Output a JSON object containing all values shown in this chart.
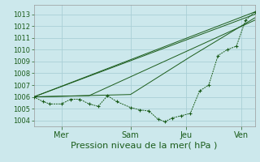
{
  "xlabel": "Pression niveau de la mer( hPa )",
  "background_color": "#cce8ec",
  "grid_color": "#aacfd6",
  "line_color": "#1a5c1a",
  "ylim": [
    1003.5,
    1013.8
  ],
  "yticks": [
    1004,
    1005,
    1006,
    1007,
    1008,
    1009,
    1010,
    1011,
    1012,
    1013
  ],
  "xlim": [
    0,
    96
  ],
  "xtick_positions": [
    12,
    42,
    66,
    90
  ],
  "xtick_labels": [
    "Mer",
    "Sam",
    "Jeu",
    "Ven"
  ],
  "series1_x": [
    0,
    4,
    7,
    12,
    16,
    20,
    24,
    28,
    32,
    36,
    42,
    46,
    50,
    54,
    57,
    60,
    64,
    68,
    72,
    76,
    80,
    84,
    88,
    92,
    96
  ],
  "series1_y": [
    1006.0,
    1005.6,
    1005.4,
    1005.4,
    1005.8,
    1005.8,
    1005.4,
    1005.2,
    1006.1,
    1005.6,
    1005.1,
    1004.9,
    1004.8,
    1004.1,
    1003.9,
    1004.2,
    1004.4,
    1004.6,
    1006.5,
    1007.0,
    1009.5,
    1010.0,
    1010.3,
    1012.5,
    1013.2
  ],
  "series2_x": [
    0,
    96
  ],
  "series2_y": [
    1006.0,
    1013.2
  ],
  "series3_x": [
    0,
    96
  ],
  "series3_y": [
    1006.0,
    1013.0
  ],
  "series4_x": [
    0,
    42,
    68,
    96
  ],
  "series4_y": [
    1006.0,
    1006.2,
    1009.4,
    1012.7
  ],
  "series5_x": [
    0,
    24,
    96
  ],
  "series5_y": [
    1006.0,
    1006.1,
    1012.5
  ]
}
